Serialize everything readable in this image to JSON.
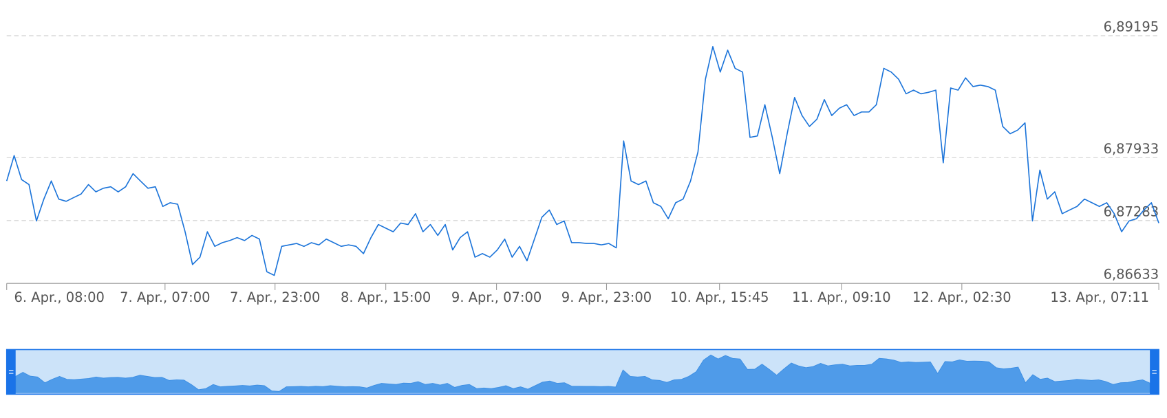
{
  "chart_data": {
    "type": "line",
    "xlim": [
      0,
      155
    ],
    "xticks": [
      {
        "value": 0,
        "label": "6. Apr., 08:00"
      },
      {
        "value": 21.3,
        "label": "7. Apr., 07:00"
      },
      {
        "value": 36.1,
        "label": "7. Apr., 23:00"
      },
      {
        "value": 51,
        "label": "8. Apr., 15:00"
      },
      {
        "value": 65.9,
        "label": "9. Apr., 07:00"
      },
      {
        "value": 80.7,
        "label": "9. Apr., 23:00"
      },
      {
        "value": 95.9,
        "label": "10. Apr., 15:45"
      },
      {
        "value": 112.3,
        "label": "11. Apr., 09:10"
      },
      {
        "value": 128.5,
        "label": "12. Apr., 02:30"
      },
      {
        "value": 155,
        "label": "13. Apr., 07:11"
      }
    ],
    "ylim": [
      6.86633,
      6.89195
    ],
    "yticks": [
      {
        "value": 6.86633,
        "label": "6,86633"
      },
      {
        "value": 6.87283,
        "label": "6,87283"
      },
      {
        "value": 6.87933,
        "label": "6,87933"
      },
      {
        "value": 6.89195,
        "label": "6,89195"
      }
    ],
    "grid": true,
    "color": "#1a73d9",
    "navigator": true,
    "values": [
      6.87692,
      6.87955,
      6.87707,
      6.87655,
      6.87279,
      6.87505,
      6.87692,
      6.87505,
      6.87482,
      6.8752,
      6.87557,
      6.87655,
      6.8758,
      6.87617,
      6.87632,
      6.8758,
      6.87632,
      6.87768,
      6.87692,
      6.87617,
      6.87632,
      6.87429,
      6.87467,
      6.87452,
      6.87167,
      6.86828,
      6.86904,
      6.87167,
      6.87016,
      6.87054,
      6.87076,
      6.87106,
      6.87076,
      6.87129,
      6.87091,
      6.86753,
      6.86716,
      6.87016,
      6.87031,
      6.87046,
      6.87016,
      6.87054,
      6.87031,
      6.87091,
      6.87054,
      6.87016,
      6.87031,
      6.87016,
      6.86941,
      6.87106,
      6.87242,
      6.87204,
      6.87167,
      6.87257,
      6.87242,
      6.87354,
      6.87167,
      6.87242,
      6.87129,
      6.87242,
      6.86979,
      6.87106,
      6.87167,
      6.86904,
      6.86941,
      6.86904,
      6.86979,
      6.87091,
      6.86904,
      6.87016,
      6.86866,
      6.87091,
      6.87317,
      6.87392,
      6.87242,
      6.87279,
      6.87054,
      6.87054,
      6.87046,
      6.87046,
      6.87031,
      6.87046,
      6.87001,
      6.88106,
      6.87692,
      6.87655,
      6.87692,
      6.87467,
      6.87429,
      6.87302,
      6.87467,
      6.87505,
      6.87692,
      6.87993,
      6.88744,
      6.89082,
      6.88819,
      6.89045,
      6.88857,
      6.88819,
      6.88143,
      6.88158,
      6.88481,
      6.88143,
      6.87768,
      6.88181,
      6.88556,
      6.88369,
      6.88256,
      6.88331,
      6.88534,
      6.88369,
      6.88444,
      6.88481,
      6.88369,
      6.88406,
      6.88406,
      6.88481,
      6.88857,
      6.88819,
      6.88744,
      6.88594,
      6.88632,
      6.88594,
      6.88609,
      6.88632,
      6.8788,
      6.88654,
      6.88632,
      6.88759,
      6.88669,
      6.88684,
      6.88669,
      6.88632,
      6.88256,
      6.88181,
      6.88218,
      6.88293,
      6.87279,
      6.87805,
      6.87505,
      6.8758,
      6.87354,
      6.87392,
      6.87429,
      6.87505,
      6.87467,
      6.87429,
      6.87467,
      6.87354,
      6.87167,
      6.87279,
      6.87302,
      6.87392,
      6.87467,
      6.87257
    ]
  }
}
